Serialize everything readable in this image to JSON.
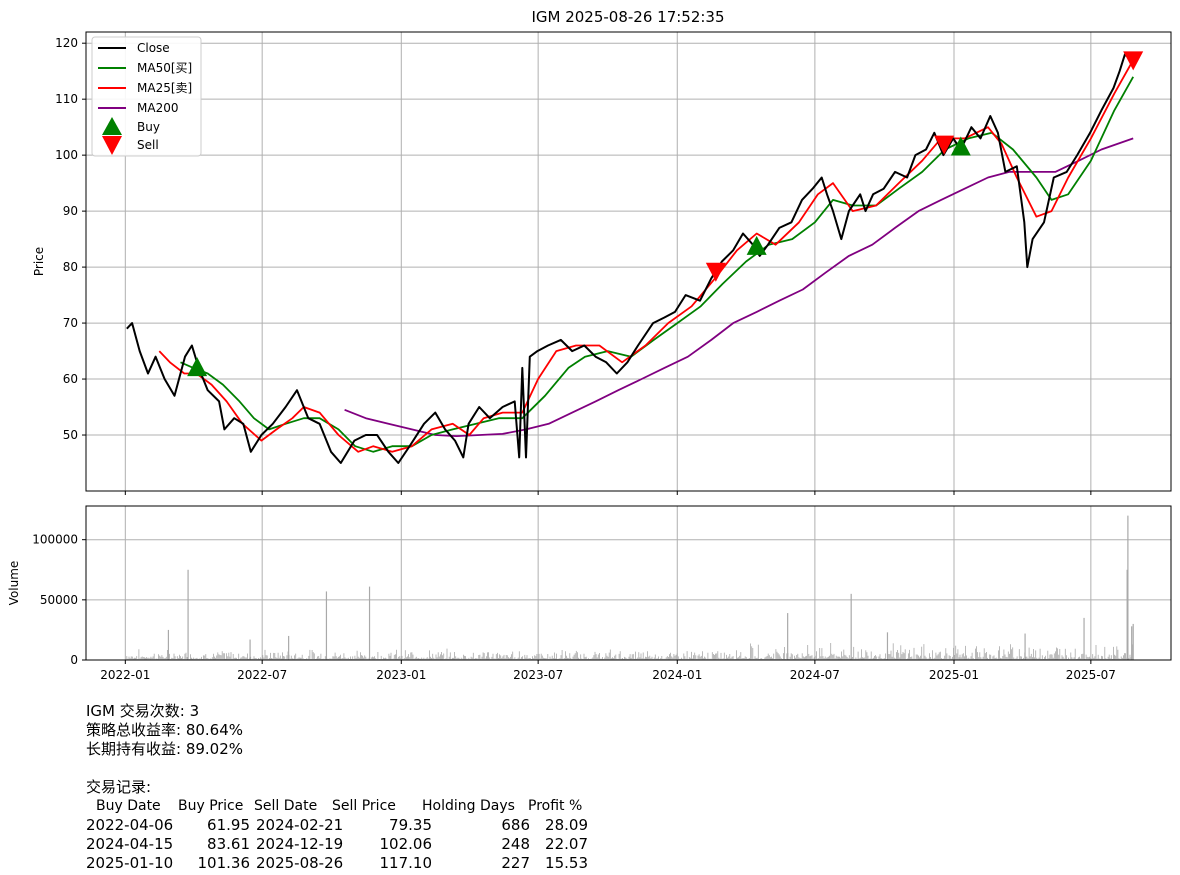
{
  "title": "IGM 2025-08-26 17:52:35",
  "colors": {
    "close": "#000000",
    "ma50": "#008000",
    "ma25": "#ff0000",
    "ma200": "#800080",
    "buy": "#008000",
    "sell": "#ff0000",
    "volume": "#a9a9a9",
    "grid": "#b0b0b0"
  },
  "chart_data": {
    "type": "line",
    "title": "IGM 2025-08-26 17:52:35",
    "ylabel": "Price",
    "ylim": [
      40,
      122
    ],
    "yticks": [
      50,
      60,
      70,
      80,
      90,
      100,
      110,
      120
    ],
    "xlim": [
      "2021-11-10",
      "2025-10-15"
    ],
    "xticks": [
      "2022-01",
      "2022-07",
      "2023-01",
      "2023-07",
      "2024-01",
      "2024-07",
      "2025-01",
      "2025-07"
    ],
    "grid": true,
    "legend_position": "upper-left",
    "legend": [
      "Close",
      "MA50[买]",
      "MA25[卖]",
      "MA200",
      "Buy",
      "Sell"
    ],
    "series": [
      {
        "name": "Close",
        "points": [
          [
            "2022-01-03",
            69
          ],
          [
            "2022-01-10",
            70
          ],
          [
            "2022-01-20",
            65
          ],
          [
            "2022-01-31",
            61
          ],
          [
            "2022-02-10",
            64
          ],
          [
            "2022-02-22",
            60
          ],
          [
            "2022-03-07",
            57
          ],
          [
            "2022-03-21",
            64
          ],
          [
            "2022-03-30",
            66
          ],
          [
            "2022-04-08",
            62
          ],
          [
            "2022-04-20",
            58
          ],
          [
            "2022-05-05",
            56
          ],
          [
            "2022-05-12",
            51
          ],
          [
            "2022-05-25",
            53
          ],
          [
            "2022-06-06",
            52
          ],
          [
            "2022-06-16",
            47
          ],
          [
            "2022-06-30",
            50
          ],
          [
            "2022-07-15",
            52
          ],
          [
            "2022-08-01",
            55
          ],
          [
            "2022-08-16",
            58
          ],
          [
            "2022-08-31",
            53
          ],
          [
            "2022-09-15",
            52
          ],
          [
            "2022-09-30",
            47
          ],
          [
            "2022-10-13",
            45
          ],
          [
            "2022-10-31",
            49
          ],
          [
            "2022-11-15",
            50
          ],
          [
            "2022-11-30",
            50
          ],
          [
            "2022-12-15",
            47
          ],
          [
            "2022-12-28",
            45
          ],
          [
            "2023-01-12",
            48
          ],
          [
            "2023-01-31",
            52
          ],
          [
            "2023-02-15",
            54
          ],
          [
            "2023-02-28",
            51
          ],
          [
            "2023-03-13",
            49
          ],
          [
            "2023-03-24",
            46
          ],
          [
            "2023-03-31",
            52
          ],
          [
            "2023-04-14",
            55
          ],
          [
            "2023-04-28",
            53
          ],
          [
            "2023-05-15",
            55
          ],
          [
            "2023-05-31",
            56
          ],
          [
            "2023-06-06",
            46
          ],
          [
            "2023-06-10",
            62
          ],
          [
            "2023-06-15",
            46
          ],
          [
            "2023-06-20",
            64
          ],
          [
            "2023-06-30",
            65
          ],
          [
            "2023-07-14",
            66
          ],
          [
            "2023-07-31",
            67
          ],
          [
            "2023-08-15",
            65
          ],
          [
            "2023-08-31",
            66
          ],
          [
            "2023-09-15",
            64
          ],
          [
            "2023-09-29",
            63
          ],
          [
            "2023-10-13",
            61
          ],
          [
            "2023-10-27",
            63
          ],
          [
            "2023-11-10",
            66
          ],
          [
            "2023-11-30",
            70
          ],
          [
            "2023-12-15",
            71
          ],
          [
            "2023-12-29",
            72
          ],
          [
            "2024-01-12",
            75
          ],
          [
            "2024-01-31",
            74
          ],
          [
            "2024-02-15",
            78
          ],
          [
            "2024-02-29",
            81
          ],
          [
            "2024-03-15",
            83
          ],
          [
            "2024-03-28",
            86
          ],
          [
            "2024-04-10",
            84
          ],
          [
            "2024-04-19",
            82
          ],
          [
            "2024-04-30",
            84
          ],
          [
            "2024-05-15",
            87
          ],
          [
            "2024-05-31",
            88
          ],
          [
            "2024-06-14",
            92
          ],
          [
            "2024-06-28",
            94
          ],
          [
            "2024-07-10",
            96
          ],
          [
            "2024-07-17",
            93
          ],
          [
            "2024-07-25",
            90
          ],
          [
            "2024-08-05",
            85
          ],
          [
            "2024-08-15",
            90
          ],
          [
            "2024-08-30",
            93
          ],
          [
            "2024-09-06",
            90
          ],
          [
            "2024-09-16",
            93
          ],
          [
            "2024-09-30",
            94
          ],
          [
            "2024-10-15",
            97
          ],
          [
            "2024-10-31",
            96
          ],
          [
            "2024-11-11",
            100
          ],
          [
            "2024-11-25",
            101
          ],
          [
            "2024-12-06",
            104
          ],
          [
            "2024-12-18",
            100
          ],
          [
            "2024-12-31",
            103
          ],
          [
            "2025-01-10",
            101
          ],
          [
            "2025-01-24",
            105
          ],
          [
            "2025-02-05",
            103
          ],
          [
            "2025-02-18",
            107
          ],
          [
            "2025-02-28",
            104
          ],
          [
            "2025-03-10",
            97
          ],
          [
            "2025-03-25",
            98
          ],
          [
            "2025-04-04",
            88
          ],
          [
            "2025-04-08",
            80
          ],
          [
            "2025-04-15",
            85
          ],
          [
            "2025-04-30",
            88
          ],
          [
            "2025-05-13",
            96
          ],
          [
            "2025-05-30",
            97
          ],
          [
            "2025-06-13",
            100
          ],
          [
            "2025-06-30",
            104
          ],
          [
            "2025-07-15",
            108
          ],
          [
            "2025-07-31",
            112
          ],
          [
            "2025-08-08",
            115
          ],
          [
            "2025-08-15",
            118
          ],
          [
            "2025-08-26",
            117
          ]
        ]
      },
      {
        "name": "MA50[买]",
        "points": [
          [
            "2022-03-15",
            63
          ],
          [
            "2022-04-01",
            62
          ],
          [
            "2022-04-20",
            61
          ],
          [
            "2022-05-10",
            59
          ],
          [
            "2022-06-01",
            56
          ],
          [
            "2022-06-20",
            53
          ],
          [
            "2022-07-10",
            51
          ],
          [
            "2022-08-01",
            52
          ],
          [
            "2022-08-25",
            53
          ],
          [
            "2022-09-15",
            53
          ],
          [
            "2022-10-10",
            51
          ],
          [
            "2022-11-01",
            48
          ],
          [
            "2022-11-25",
            47
          ],
          [
            "2022-12-20",
            48
          ],
          [
            "2023-01-15",
            48
          ],
          [
            "2023-02-10",
            50
          ],
          [
            "2023-03-10",
            51
          ],
          [
            "2023-04-10",
            52
          ],
          [
            "2023-05-10",
            53
          ],
          [
            "2023-06-10",
            53
          ],
          [
            "2023-07-10",
            57
          ],
          [
            "2023-08-10",
            62
          ],
          [
            "2023-09-01",
            64
          ],
          [
            "2023-10-01",
            65
          ],
          [
            "2023-11-01",
            64
          ],
          [
            "2023-12-01",
            67
          ],
          [
            "2024-01-01",
            70
          ],
          [
            "2024-02-01",
            73
          ],
          [
            "2024-03-01",
            77
          ],
          [
            "2024-04-01",
            81
          ],
          [
            "2024-05-01",
            84
          ],
          [
            "2024-06-01",
            85
          ],
          [
            "2024-07-01",
            88
          ],
          [
            "2024-07-25",
            92
          ],
          [
            "2024-08-20",
            91
          ],
          [
            "2024-09-20",
            91
          ],
          [
            "2024-10-20",
            94
          ],
          [
            "2024-11-20",
            97
          ],
          [
            "2024-12-20",
            101
          ],
          [
            "2025-01-20",
            103
          ],
          [
            "2025-02-20",
            104
          ],
          [
            "2025-03-20",
            101
          ],
          [
            "2025-04-20",
            96
          ],
          [
            "2025-05-10",
            92
          ],
          [
            "2025-06-01",
            93
          ],
          [
            "2025-07-01",
            99
          ],
          [
            "2025-08-01",
            108
          ],
          [
            "2025-08-26",
            114
          ]
        ]
      },
      {
        "name": "MA25[卖]",
        "points": [
          [
            "2022-02-15",
            65
          ],
          [
            "2022-03-01",
            63
          ],
          [
            "2022-03-20",
            61
          ],
          [
            "2022-04-05",
            61
          ],
          [
            "2022-04-25",
            59
          ],
          [
            "2022-05-15",
            56
          ],
          [
            "2022-06-05",
            52
          ],
          [
            "2022-06-30",
            49
          ],
          [
            "2022-07-20",
            51
          ],
          [
            "2022-08-10",
            53
          ],
          [
            "2022-08-25",
            55
          ],
          [
            "2022-09-15",
            54
          ],
          [
            "2022-10-10",
            50
          ],
          [
            "2022-11-05",
            47
          ],
          [
            "2022-11-25",
            48
          ],
          [
            "2022-12-20",
            47
          ],
          [
            "2023-01-15",
            48
          ],
          [
            "2023-02-10",
            51
          ],
          [
            "2023-03-10",
            52
          ],
          [
            "2023-04-01",
            50
          ],
          [
            "2023-04-20",
            53
          ],
          [
            "2023-05-15",
            54
          ],
          [
            "2023-06-10",
            54
          ],
          [
            "2023-07-01",
            60
          ],
          [
            "2023-07-25",
            65
          ],
          [
            "2023-08-20",
            66
          ],
          [
            "2023-09-20",
            66
          ],
          [
            "2023-10-20",
            63
          ],
          [
            "2023-11-20",
            66
          ],
          [
            "2023-12-20",
            70
          ],
          [
            "2024-01-20",
            73
          ],
          [
            "2024-02-20",
            78
          ],
          [
            "2024-03-20",
            83
          ],
          [
            "2024-04-15",
            86
          ],
          [
            "2024-05-10",
            84
          ],
          [
            "2024-06-10",
            88
          ],
          [
            "2024-07-05",
            93
          ],
          [
            "2024-07-25",
            95
          ],
          [
            "2024-08-20",
            90
          ],
          [
            "2024-09-20",
            91
          ],
          [
            "2024-10-20",
            95
          ],
          [
            "2024-11-20",
            99
          ],
          [
            "2024-12-15",
            103
          ],
          [
            "2025-01-15",
            103
          ],
          [
            "2025-02-15",
            105
          ],
          [
            "2025-03-05",
            102
          ],
          [
            "2025-03-25",
            96
          ],
          [
            "2025-04-20",
            89
          ],
          [
            "2025-05-10",
            90
          ],
          [
            "2025-06-01",
            96
          ],
          [
            "2025-07-01",
            103
          ],
          [
            "2025-08-01",
            111
          ],
          [
            "2025-08-26",
            117
          ]
        ]
      },
      {
        "name": "MA200",
        "points": [
          [
            "2022-10-18",
            54.5
          ],
          [
            "2022-11-15",
            53
          ],
          [
            "2022-12-15",
            52
          ],
          [
            "2023-01-15",
            51
          ],
          [
            "2023-02-15",
            50
          ],
          [
            "2023-03-15",
            49.8
          ],
          [
            "2023-04-15",
            50
          ],
          [
            "2023-05-15",
            50.2
          ],
          [
            "2023-06-15",
            51
          ],
          [
            "2023-07-15",
            52
          ],
          [
            "2023-08-15",
            54
          ],
          [
            "2023-09-15",
            56
          ],
          [
            "2023-10-15",
            58
          ],
          [
            "2023-11-15",
            60
          ],
          [
            "2023-12-15",
            62
          ],
          [
            "2024-01-15",
            64
          ],
          [
            "2024-02-15",
            67
          ],
          [
            "2024-03-15",
            70
          ],
          [
            "2024-04-15",
            72
          ],
          [
            "2024-05-15",
            74
          ],
          [
            "2024-06-15",
            76
          ],
          [
            "2024-07-15",
            79
          ],
          [
            "2024-08-15",
            82
          ],
          [
            "2024-09-15",
            84
          ],
          [
            "2024-10-15",
            87
          ],
          [
            "2024-11-15",
            90
          ],
          [
            "2024-12-15",
            92
          ],
          [
            "2025-01-15",
            94
          ],
          [
            "2025-02-15",
            96
          ],
          [
            "2025-03-15",
            97
          ],
          [
            "2025-04-15",
            97
          ],
          [
            "2025-05-15",
            97
          ],
          [
            "2025-06-15",
            99
          ],
          [
            "2025-07-15",
            101
          ],
          [
            "2025-08-26",
            103
          ]
        ]
      }
    ],
    "buy_signals": [
      [
        "2022-04-06",
        61.95
      ],
      [
        "2024-04-15",
        83.61
      ],
      [
        "2025-01-10",
        101.36
      ]
    ],
    "sell_signals": [
      [
        "2024-02-21",
        79.35
      ],
      [
        "2024-12-19",
        102.06
      ],
      [
        "2025-08-26",
        117.1
      ]
    ],
    "volume": {
      "ylabel": "Volume",
      "ylim": [
        0,
        128000
      ],
      "yticks": [
        0,
        50000,
        100000
      ],
      "spikes": [
        [
          "2022-03-25",
          75000
        ],
        [
          "2022-02-27",
          25000
        ],
        [
          "2022-09-24",
          57000
        ],
        [
          "2022-11-20",
          61000
        ],
        [
          "2024-05-26",
          39000
        ],
        [
          "2024-08-18",
          55000
        ],
        [
          "2025-06-22",
          35000
        ],
        [
          "2025-08-19",
          120000
        ],
        [
          "2025-08-18",
          75000
        ],
        [
          "2025-08-26",
          30000
        ],
        [
          "2025-08-24",
          28000
        ],
        [
          "2022-06-15",
          17000
        ],
        [
          "2022-08-05",
          20000
        ],
        [
          "2024-10-05",
          23000
        ],
        [
          "2025-04-05",
          22000
        ]
      ]
    }
  },
  "stats": {
    "line1": "IGM 交易次数: 3",
    "line2": "策略总收益率: 80.64%",
    "line3": "长期持有收益: 89.02%"
  },
  "trades": {
    "title": "交易记录:",
    "headers": [
      "Buy Date",
      "Buy Price",
      "Sell Date",
      "Sell Price",
      "Holding Days",
      "Profit %"
    ],
    "rows": [
      [
        "2022-04-06",
        "61.95",
        "2024-02-21",
        "79.35",
        "686",
        "28.09"
      ],
      [
        "2024-04-15",
        "83.61",
        "2024-12-19",
        "102.06",
        "248",
        "22.07"
      ],
      [
        "2025-01-10",
        "101.36",
        "2025-08-26",
        "117.10",
        "227",
        "15.53"
      ]
    ]
  }
}
